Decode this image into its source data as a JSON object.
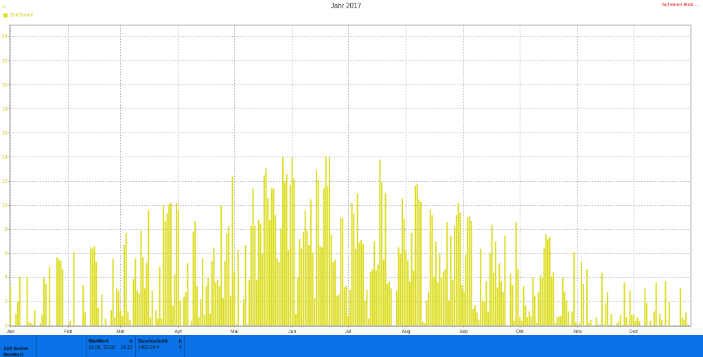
{
  "chart_data": {
    "type": "bar",
    "title": "Jahr 2017",
    "ylabel": "h",
    "legend": "top left",
    "grid": true,
    "categories": [
      "Jan",
      null,
      null,
      null,
      null,
      null,
      null,
      null,
      null,
      null,
      null,
      null,
      null,
      null,
      null,
      null,
      null,
      null,
      null,
      null,
      null,
      null,
      null,
      null,
      null,
      null,
      null,
      null,
      null,
      null,
      null,
      "Feb",
      null,
      null,
      null,
      null,
      null,
      null,
      null,
      null,
      null,
      null,
      null,
      null,
      null,
      null,
      null,
      null,
      null,
      null,
      null,
      null,
      null,
      null,
      null,
      null,
      null,
      null,
      null,
      "Mär",
      null,
      null,
      null,
      null,
      null,
      null,
      null,
      null,
      null,
      null,
      null,
      null,
      null,
      null,
      null,
      null,
      null,
      null,
      null,
      null,
      null,
      null,
      null,
      null,
      null,
      null,
      null,
      null,
      null,
      null,
      "Apr",
      null,
      null,
      null,
      null,
      null,
      null,
      null,
      null,
      null,
      null,
      null,
      null,
      null,
      null,
      null,
      null,
      null,
      null,
      null,
      null,
      null,
      null,
      null,
      null,
      null,
      null,
      null,
      null,
      null,
      "Mai",
      null,
      null,
      null,
      null,
      null,
      null,
      null,
      null,
      null,
      null,
      null,
      null,
      null,
      null,
      null,
      null,
      null,
      null,
      null,
      null,
      null,
      null,
      null,
      null,
      null,
      null,
      null,
      null,
      null,
      null,
      "Jun",
      null,
      null,
      null,
      null,
      null,
      null,
      null,
      null,
      null,
      null,
      null,
      null,
      null,
      null,
      null,
      null,
      null,
      null,
      null,
      null,
      null,
      null,
      null,
      null,
      null,
      null,
      null,
      null,
      null,
      "Jul",
      null,
      null,
      null,
      null,
      null,
      null,
      null,
      null,
      null,
      null,
      null,
      null,
      null,
      null,
      null,
      null,
      null,
      null,
      null,
      null,
      null,
      null,
      null,
      null,
      null,
      null,
      null,
      null,
      null,
      null,
      "Aug",
      null,
      null,
      null,
      null,
      null,
      null,
      null,
      null,
      null,
      null,
      null,
      null,
      null,
      null,
      null,
      null,
      null,
      null,
      null,
      null,
      null,
      null,
      null,
      null,
      null,
      null,
      null,
      null,
      null,
      null,
      "Sep",
      null,
      null,
      null,
      null,
      null,
      null,
      null,
      null,
      null,
      null,
      null,
      null,
      null,
      null,
      null,
      null,
      null,
      null,
      null,
      null,
      null,
      null,
      null,
      null,
      null,
      null,
      null,
      null,
      null,
      "Okt",
      null,
      null,
      null,
      null,
      null,
      null,
      null,
      null,
      null,
      null,
      null,
      null,
      null,
      null,
      null,
      null,
      null,
      null,
      null,
      null,
      null,
      null,
      null,
      null,
      null,
      null,
      null,
      null,
      null,
      null,
      "Nov",
      null,
      null,
      null,
      null,
      null,
      null,
      null,
      null,
      null,
      null,
      null,
      null,
      null,
      null,
      null,
      null,
      null,
      null,
      null,
      null,
      null,
      null,
      null,
      null,
      null,
      null,
      null,
      null,
      null,
      "Dez",
      null,
      null,
      null,
      null,
      null,
      null,
      null,
      null,
      null,
      null,
      null,
      null,
      null,
      null,
      null,
      null,
      null,
      null,
      null,
      null,
      null,
      null,
      null,
      null,
      null,
      null,
      null,
      null,
      null,
      null
    ],
    "series": [
      {
        "name": "Zeit Sonne",
        "color": "#dcdc1e",
        "values": [
          3.3,
          0,
          0,
          1.0,
          2.0,
          4.1,
          0,
          0,
          0,
          4.1,
          0.3,
          0.2,
          0.1,
          1.3,
          0,
          0,
          0.2,
          0.9,
          4.0,
          3.5,
          0,
          4.9,
          0,
          0,
          0,
          5.7,
          5.5,
          5.4,
          4.7,
          0,
          0,
          0,
          0.4,
          0,
          6.1,
          0,
          0,
          0,
          0,
          3.4,
          1.1,
          0,
          0,
          6.5,
          6.4,
          6.6,
          5.3,
          1.5,
          0,
          2.6,
          0,
          0.6,
          0,
          0,
          1.3,
          5.6,
          0.7,
          3.1,
          2.9,
          1.3,
          0.8,
          6.7,
          7.7,
          1.2,
          0.5,
          0,
          3.9,
          5.6,
          2.9,
          2.7,
          7.9,
          5.7,
          3.1,
          5.2,
          9.6,
          0.7,
          2.9,
          0,
          1.3,
          0.6,
          4.9,
          0.6,
          10.0,
          8.7,
          9.4,
          10.1,
          10.2,
          1.7,
          4.3,
          10.2,
          9.6,
          2.1,
          0,
          2.4,
          2.8,
          5.2,
          0,
          0.4,
          7.8,
          8.7,
          3.3,
          0.7,
          2.2,
          5.6,
          0.9,
          3.3,
          4.0,
          1.0,
          5.4,
          6.5,
          3.6,
          3.8,
          3.3,
          10.0,
          2.3,
          5.4,
          7.7,
          8.3,
          2.5,
          12.4,
          4.4,
          0.1,
          6.3,
          0,
          0,
          2.2,
          6.7,
          0.1,
          3.8,
          8.3,
          11.4,
          8.3,
          3.8,
          8.8,
          8.5,
          6.0,
          12.5,
          13.1,
          10.6,
          8.8,
          11.4,
          11.4,
          9.2,
          5.6,
          5.3,
          8.1,
          14.0,
          11.9,
          12.6,
          6.3,
          11.7,
          14.0,
          12.2,
          1.0,
          4.0,
          7.2,
          6.4,
          7.8,
          9.6,
          7.9,
          6.7,
          10.5,
          6.1,
          2.3,
          12.9,
          12.1,
          6.6,
          6.5,
          11.4,
          14.1,
          11.6,
          14.0,
          7.6,
          5.3,
          5.5,
          2.5,
          2.6,
          9.0,
          8.9,
          3.2,
          3.3,
          0.8,
          3.0,
          10.2,
          9.3,
          6.4,
          11.0,
          6.9,
          7.1,
          6.8,
          2.1,
          3.0,
          0.6,
          4.5,
          4.7,
          7.0,
          4.6,
          5.1,
          13.8,
          11.9,
          5.5,
          11.0,
          3.5,
          3.7,
          3.1,
          0,
          0,
          2.9,
          6.5,
          6.0,
          10.6,
          8.9,
          6.3,
          5.4,
          3.7,
          7.7,
          4.6,
          11.6,
          11.8,
          10.5,
          10.3,
          0.3,
          0.2,
          2.1,
          2.8,
          9.6,
          9.2,
          4.1,
          7.0,
          3.6,
          6.0,
          4.0,
          4.5,
          4.7,
          8.6,
          2.1,
          7.5,
          3.8,
          8.3,
          9.2,
          10.2,
          9.4,
          3.4,
          2.8,
          5.9,
          9.0,
          9.1,
          8.7,
          1.4,
          1.7,
          1.1,
          0.5,
          6.4,
          2.1,
          2.0,
          3.7,
          1.1,
          6.0,
          8.4,
          4.4,
          7.0,
          3.2,
          5.2,
          3.7,
          2.8,
          7.5,
          0,
          0,
          4.3,
          3.4,
          0.4,
          8.6,
          4.7,
          0.7,
          0.4,
          3.3,
          1.7,
          0.7,
          1.2,
          0.8,
          4.0,
          2.5,
          0.2,
          2.8,
          4.2,
          4.0,
          6.5,
          7.6,
          7.2,
          7.4,
          4.1,
          4.5,
          0.2,
          0.7,
          0.8,
          0.8,
          4.0,
          2.8,
          2.1,
          1.2,
          0.1,
          1.2,
          6.1,
          0.3,
          0,
          0.2,
          5.3,
          3.5,
          0,
          4.7,
          0.2,
          0.5,
          0,
          0,
          0.7,
          0.1,
          0.1,
          4.4,
          0.1,
          1.9,
          2.8,
          0.1,
          1.0,
          0,
          0,
          0.2,
          0.4,
          0.9,
          0,
          3.6,
          0.7,
          0.1,
          2.9,
          0.9,
          0.9,
          0.4,
          0.7,
          0.4,
          0,
          0,
          3.1,
          1.9,
          0,
          0.4,
          0,
          1.2,
          3.6,
          0,
          1.0,
          0.5,
          0,
          3.7,
          0,
          2.0,
          0,
          0,
          0,
          0,
          0,
          3.1,
          0.7,
          0.5,
          1.1,
          0.1,
          0
        ]
      }
    ],
    "ylim": [
      0,
      25
    ],
    "yticks": [
      0,
      2,
      4,
      6,
      8,
      10,
      12,
      14,
      16,
      18,
      20,
      22,
      24
    ],
    "annotations": [
      "Auf einen Blick ...",
      "Zeit Sonne",
      "MaxWert",
      "MaxWert",
      "h",
      "19.06.  20:02",
      "14.10",
      "Durchschnitt",
      "h",
      "1483:34 h",
      "4"
    ]
  }
}
